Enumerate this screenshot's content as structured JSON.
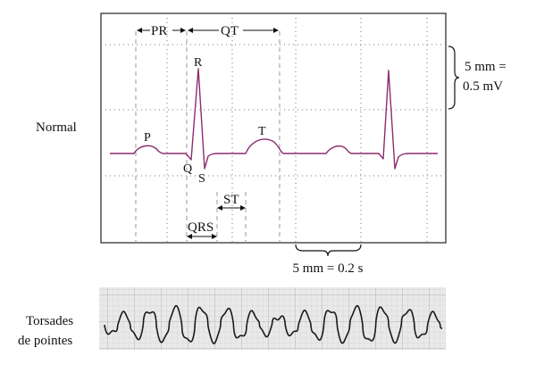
{
  "normal_panel": {
    "row_label": "Normal",
    "wave_labels": {
      "p": "P",
      "q": "Q",
      "r": "R",
      "s": "S",
      "t": "T"
    },
    "intervals": {
      "pr": "PR",
      "qt": "QT",
      "st": "ST",
      "qrs": "QRS"
    },
    "scale_vertical": {
      "line1": "5 mm =",
      "line2": "0.5 mV"
    },
    "scale_horizontal": "5 mm = 0.2 s",
    "trace_color": "#8b2d6e",
    "grid_style": "dashed"
  },
  "torsades_panel": {
    "row_label_line1": "Torsades",
    "row_label_line2": "de pointes",
    "strip_style": "ecg-paper-photo"
  }
}
